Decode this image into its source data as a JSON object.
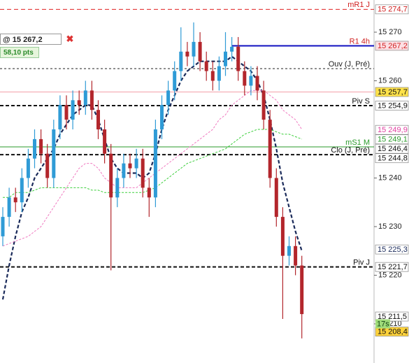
{
  "chart_data": {
    "type": "candlestick",
    "ylim": [
      15201.94,
      15276.62
    ],
    "yticks": [
      {
        "value": 15270,
        "label": "15 270"
      },
      {
        "value": 15260,
        "label": "15 260"
      },
      {
        "value": 15240,
        "label": "15 240"
      },
      {
        "value": 15230,
        "label": "15 230"
      },
      {
        "value": 15220,
        "label": "15 220"
      },
      {
        "value": 15210,
        "label": "15 210"
      }
    ],
    "up_color": "#2f9bd6",
    "down_color": "#b3262c",
    "candles": {
      "open": [
        15228,
        15232,
        15236,
        15235,
        15240,
        15244,
        15248,
        15245,
        15240,
        15250,
        15255,
        15252,
        15256,
        15255,
        15258,
        15254,
        15250,
        15245,
        15236,
        15240,
        15243,
        15242,
        15244,
        15238,
        15236,
        15250,
        15255,
        15258,
        15262,
        15266,
        15265,
        15268,
        15264,
        15262,
        15260,
        15263,
        15266,
        15267,
        15262,
        15259,
        15261,
        15258,
        15252,
        15240,
        15232,
        15224,
        15226,
        15222
      ],
      "high": [
        15234,
        15238,
        15238,
        15242,
        15246,
        15250,
        15250,
        15247,
        15252,
        15257,
        15257,
        15258,
        15258,
        15260,
        15260,
        15256,
        15252,
        15247,
        15242,
        15245,
        15245,
        15246,
        15246,
        15240,
        15252,
        15257,
        15260,
        15264,
        15271,
        15268,
        15272,
        15270,
        15266,
        15264,
        15265,
        15270,
        15269,
        15269,
        15264,
        15263,
        15263,
        15260,
        15254,
        15242,
        15234,
        15228,
        15228,
        15224
      ],
      "low": [
        15226,
        15230,
        15233,
        15233,
        15238,
        15242,
        15243,
        15238,
        15238,
        15248,
        15250,
        15250,
        15253,
        15253,
        15252,
        15248,
        15243,
        15221,
        15234,
        15238,
        15240,
        15240,
        15236,
        15232,
        15234,
        15248,
        15253,
        15256,
        15260,
        15263,
        15263,
        15262,
        15260,
        15258,
        15258,
        15261,
        15264,
        15260,
        15257,
        15257,
        15256,
        15250,
        15238,
        15230,
        15211,
        15222,
        15220,
        15207
      ],
      "close": [
        15232,
        15236,
        15235,
        15240,
        15244,
        15248,
        15245,
        15240,
        15250,
        15255,
        15252,
        15256,
        15255,
        15258,
        15254,
        15250,
        15245,
        15236,
        15240,
        15243,
        15242,
        15244,
        15238,
        15236,
        15250,
        15255,
        15258,
        15262,
        15266,
        15265,
        15268,
        15264,
        15262,
        15260,
        15263,
        15266,
        15267,
        15262,
        15259,
        15261,
        15258,
        15252,
        15240,
        15232,
        15224,
        15226,
        15222,
        15212
      ]
    },
    "series": [
      {
        "color": "#1a2a5a",
        "width": 2.2,
        "dash": "5,3",
        "values": [
          15215,
          15222,
          15228,
          15233,
          15236,
          15240,
          15242,
          15244,
          15246,
          15249,
          15251,
          15253,
          15254,
          15255,
          15255,
          15252,
          15248,
          15244,
          15242,
          15241,
          15241,
          15241,
          15240,
          15241,
          15245,
          15250,
          15254,
          15257,
          15260,
          15262,
          15263,
          15264,
          15264,
          15264,
          15264,
          15264,
          15265,
          15264,
          15263,
          15262,
          15260,
          15257,
          15252,
          15246,
          15239,
          15234,
          15229,
          15225
        ]
      },
      {
        "color": "#f07ac0",
        "width": 1,
        "dash": "3,2",
        "values": [
          15226,
          15226.5,
          15227,
          15227.5,
          15228,
          15229,
          15230,
          15232,
          15234,
          15236,
          15238,
          15240,
          15242,
          15243,
          15243,
          15242,
          15240,
          15239,
          15238,
          15238,
          15238,
          15238,
          15239,
          15240,
          15241,
          15242,
          15243,
          15244,
          15245,
          15246,
          15247,
          15248,
          15249,
          15250,
          15252,
          15253,
          15255,
          15256,
          15257,
          15258,
          15258,
          15258,
          15257,
          15256,
          15254,
          15253,
          15252,
          15250
        ]
      },
      {
        "color": "#3ccf3c",
        "width": 1,
        "dash": "3,2",
        "values": [
          15236,
          15236,
          15237,
          15237,
          15237,
          15237.5,
          15238,
          15238,
          15238,
          15238,
          15238,
          15238,
          15238,
          15238,
          15237.5,
          15237.5,
          15237,
          15237,
          15237,
          15237,
          15237,
          15237,
          15237,
          15237.5,
          15238,
          15239,
          15240,
          15241,
          15242,
          15243,
          15243.5,
          15244,
          15244.5,
          15245,
          15245.5,
          15246,
          15247,
          15248,
          15249,
          15249.5,
          15250,
          15250,
          15250,
          15249.5,
          15249,
          15249,
          15248.5,
          15248
        ]
      }
    ],
    "levels": [
      {
        "name": "mR1 J",
        "value": 15274.7,
        "color": "#e02020",
        "dash": "6,4",
        "width": 1,
        "label_color": "#d02020"
      },
      {
        "name": "R1 4h",
        "value": 15267.2,
        "color": "#1010c0",
        "dash": "",
        "width": 2,
        "start": 0.62,
        "label_color": "#d02020"
      },
      {
        "name": "Ouv (J, Pré)",
        "value": 15262.5,
        "color": "#222222",
        "dash": "3,3",
        "width": 1,
        "label_color": "#222222"
      },
      {
        "value": 15257.7,
        "color": "#f4a0a8",
        "dash": "",
        "width": 1
      },
      {
        "name": "Piv S",
        "value": 15254.9,
        "color": "#111111",
        "dash": "5,3",
        "width": 2,
        "label_color": "#111111"
      },
      {
        "name": "mS1 M",
        "value": 15246.4,
        "color": "#2a9a2a",
        "dash": "",
        "width": 1,
        "label_color": "#2a9a2a"
      },
      {
        "name": "Clo (J, Pré)",
        "value": 15244.8,
        "color": "#111111",
        "dash": "5,3",
        "width": 2,
        "label_color": "#111111"
      },
      {
        "name": "Piv J",
        "value": 15221.7,
        "color": "#111111",
        "dash": "5,3",
        "width": 2,
        "label_color": "#111111"
      }
    ],
    "tags": [
      {
        "value": 15274.7,
        "label": "15 274,7",
        "color": "#d02020",
        "background": "#ffffff"
      },
      {
        "value": 15267.2,
        "label": "15 267,2",
        "color": "#d02020",
        "background": "#fde0e4"
      },
      {
        "value": 15257.7,
        "label": "15 257,7",
        "color": "#111111",
        "background": "#ffe24a"
      },
      {
        "value": 15254.9,
        "label": "15 254,9",
        "color": "#111111",
        "background": "#ffffff"
      },
      {
        "value": 15249.9,
        "label": "15 249,9",
        "color": "#e040a0",
        "background": "#ffffff"
      },
      {
        "value": 15249.1,
        "label": "15 249,1",
        "color": "#2a9a2a",
        "background": "#ffffff"
      },
      {
        "value": 15246.4,
        "label": "15 246,4",
        "color": "#111111",
        "background": "#ffffff"
      },
      {
        "value": 15244.8,
        "label": "15 244,8",
        "color": "#111111",
        "background": "#ffffff"
      },
      {
        "value": 15225.3,
        "label": "15 225,3",
        "color": "#1a2a5a",
        "background": "#ffffff"
      },
      {
        "value": 15221.7,
        "label": "15 221,7",
        "color": "#111111",
        "background": "#ffffff"
      },
      {
        "value": 15211.5,
        "label": "15 211,5",
        "color": "#111111",
        "background": "#ffffff"
      },
      {
        "value": 15208.4,
        "label": "15 208,4",
        "color": "#111111",
        "background": "#ffd23a"
      }
    ],
    "countdown": {
      "value": 15210,
      "label": "17s"
    },
    "position": {
      "price": "@ 15 267,2",
      "close": "✖",
      "points": "58,10 pts"
    }
  }
}
